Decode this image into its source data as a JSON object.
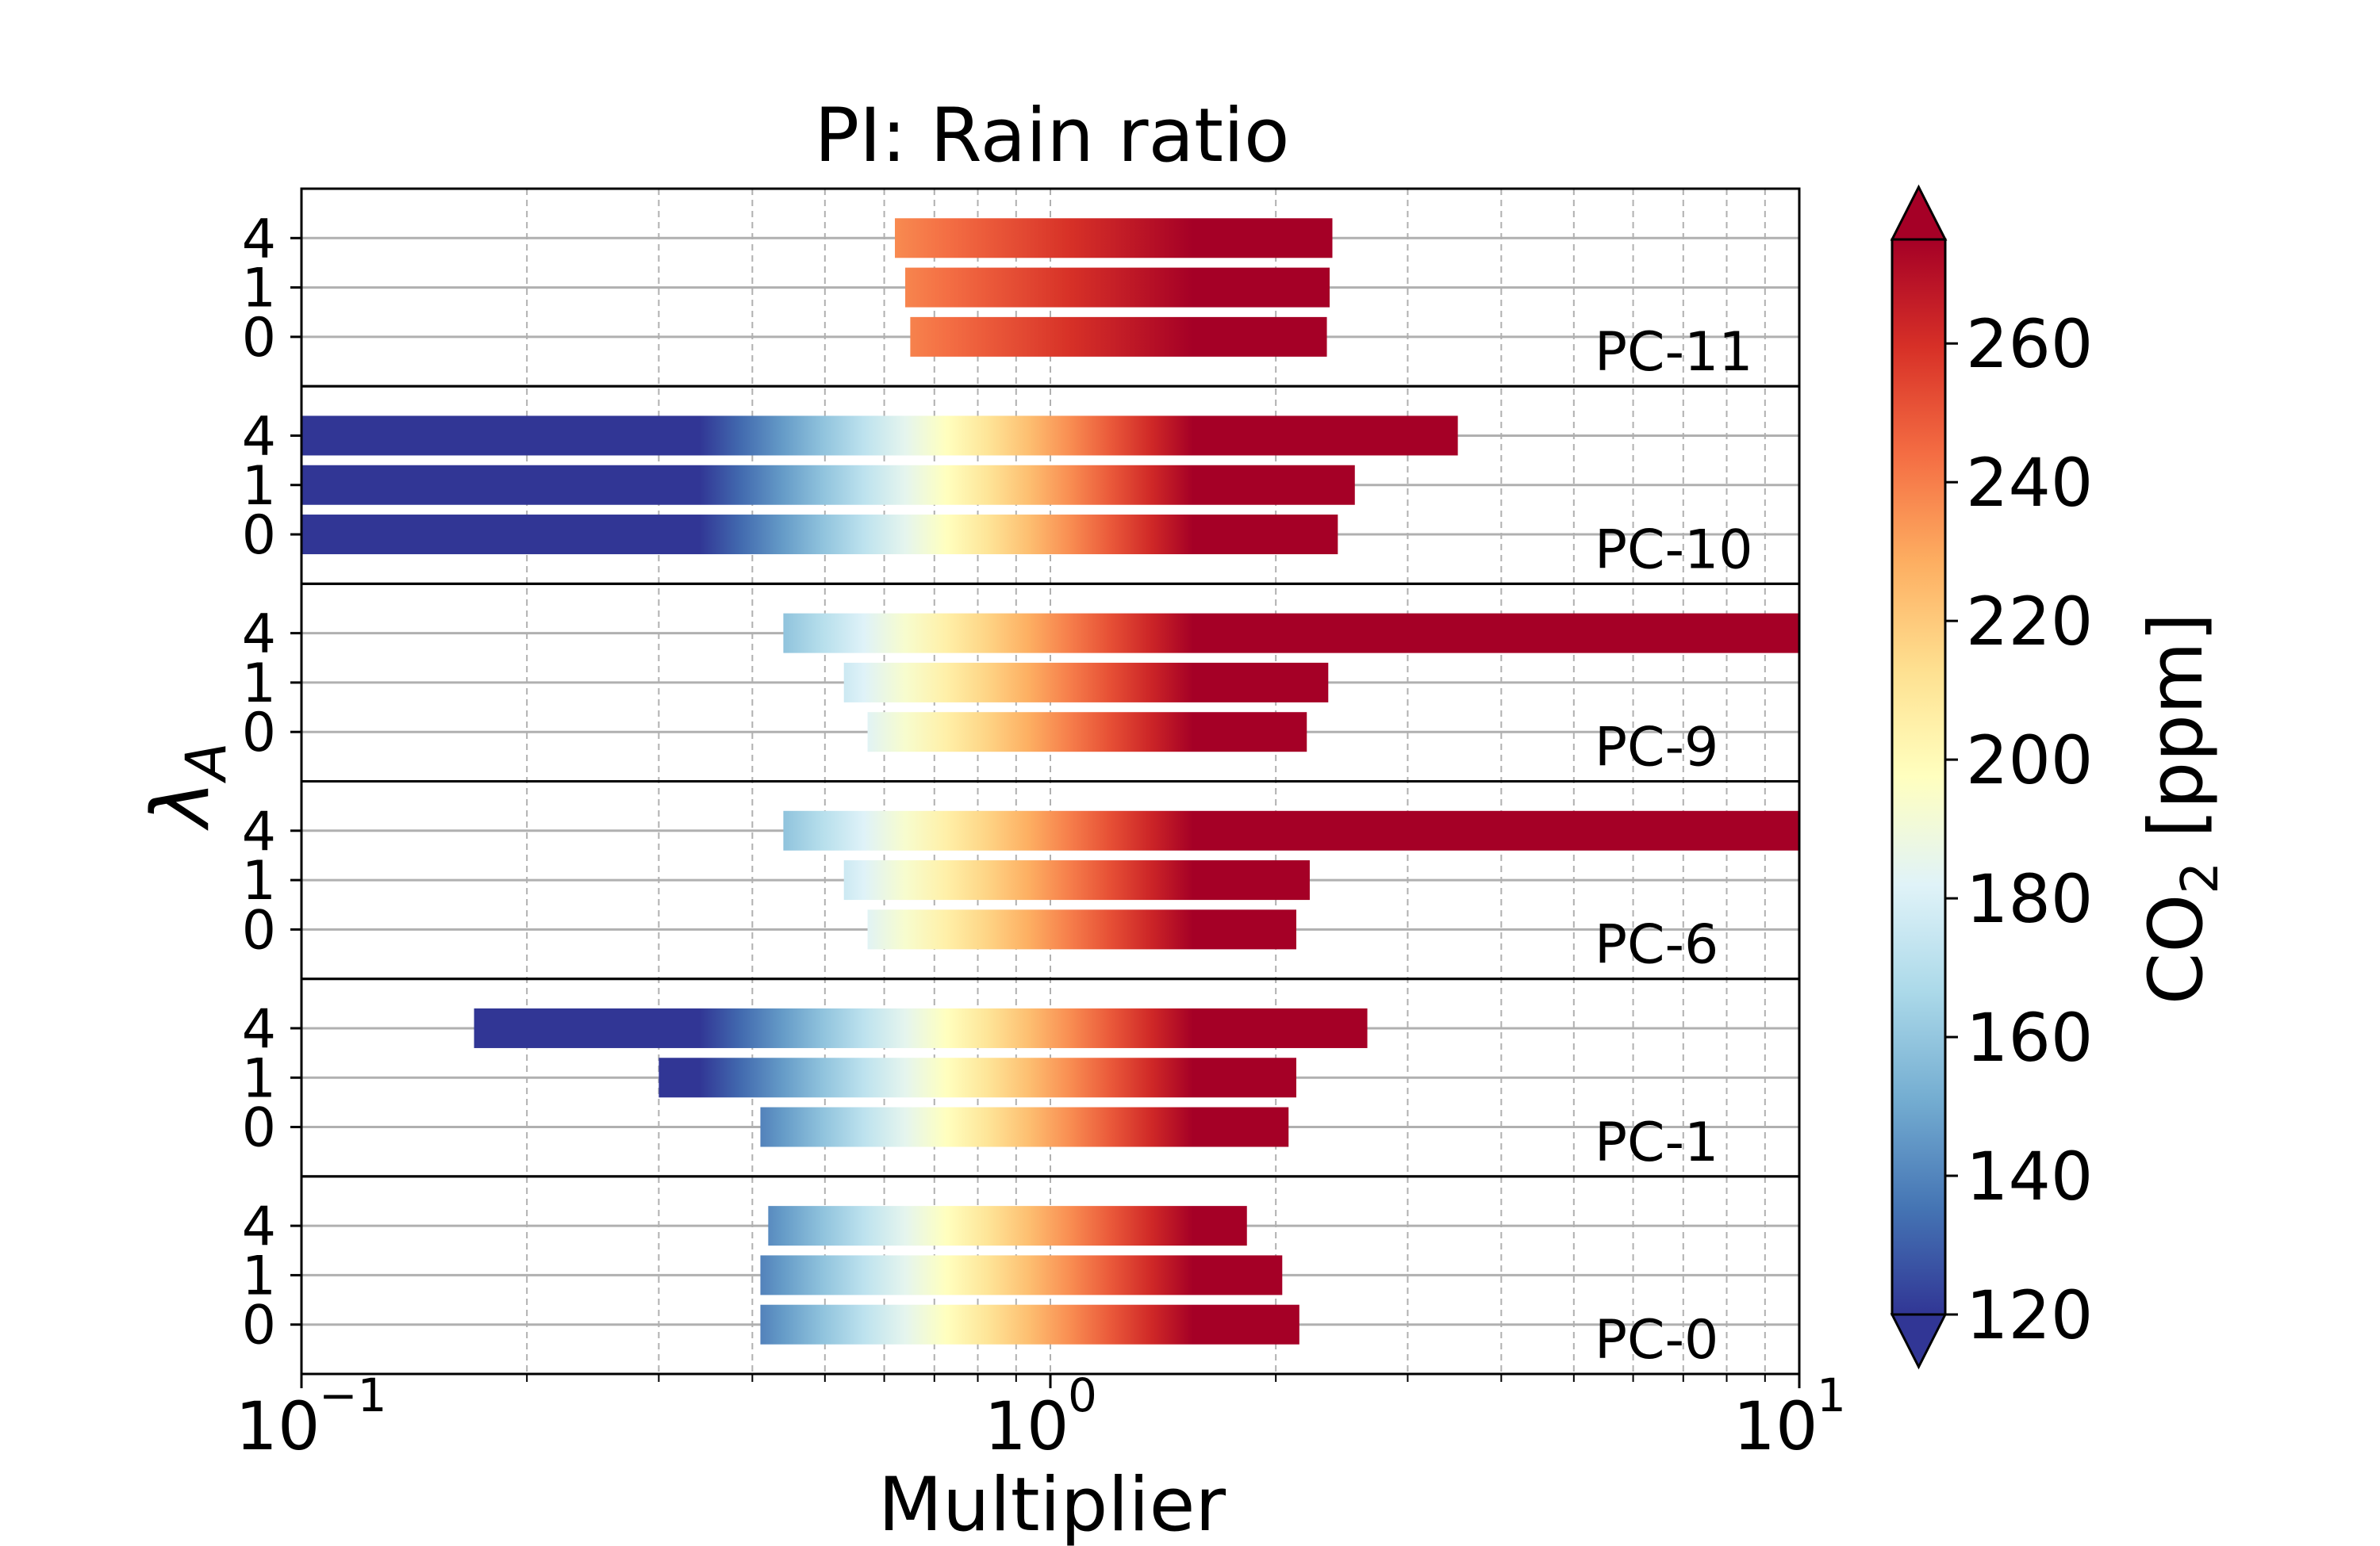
{
  "chart_data": {
    "type": "bar",
    "orientation": "horizontal",
    "title": "PI: Rain ratio",
    "xlabel": "Multiplier",
    "ylabel": "λ",
    "ylabel_subscript": "A",
    "x_scale": "log",
    "xlim": [
      0.1,
      10
    ],
    "x_tick_labels": [
      {
        "base": "10",
        "exp": "−1",
        "value": 0.1
      },
      {
        "base": "10",
        "exp": "0",
        "value": 1
      },
      {
        "base": "10",
        "exp": "1",
        "value": 10
      }
    ],
    "grid": "x major and minor (dashed), y at each bar (solid)",
    "y_tick_labels": [
      "4",
      "1",
      "0"
    ],
    "colorbar": {
      "label_prefix": "CO",
      "label_subscript": "2",
      "label_suffix": " [ppm]",
      "min": 120,
      "max": 275,
      "ticks": [
        "120",
        "140",
        "160",
        "180",
        "200",
        "220",
        "240",
        "260"
      ],
      "extend": "both",
      "colormap": "RdYlBu_r"
    },
    "groups": [
      {
        "name": "PC-11",
        "bars": [
          {
            "lambda": "4",
            "x_start": 0.62,
            "x_end": 2.38,
            "co2_start": 212,
            "co2_end": 275
          },
          {
            "lambda": "1",
            "x_start": 0.64,
            "x_end": 2.36,
            "co2_start": 212,
            "co2_end": 275
          },
          {
            "lambda": "0",
            "x_start": 0.65,
            "x_end": 2.34,
            "co2_start": 212,
            "co2_end": 275
          }
        ]
      },
      {
        "name": "PC-10",
        "bars": [
          {
            "lambda": "4",
            "x_start": 0.1,
            "x_end": 3.5,
            "co2_start": 120,
            "co2_end": 275
          },
          {
            "lambda": "1",
            "x_start": 0.1,
            "x_end": 2.55,
            "co2_start": 120,
            "co2_end": 275
          },
          {
            "lambda": "0",
            "x_start": 0.1,
            "x_end": 2.42,
            "co2_start": 120,
            "co2_end": 275
          }
        ]
      },
      {
        "name": "PC-9",
        "bars": [
          {
            "lambda": "4",
            "x_start": 0.44,
            "x_end": 10,
            "co2_start": 135,
            "co2_end": 275
          },
          {
            "lambda": "1",
            "x_start": 0.53,
            "x_end": 2.35,
            "co2_start": 135,
            "co2_end": 275
          },
          {
            "lambda": "0",
            "x_start": 0.57,
            "x_end": 2.2,
            "co2_start": 135,
            "co2_end": 275
          }
        ]
      },
      {
        "name": "PC-6",
        "bars": [
          {
            "lambda": "4",
            "x_start": 0.44,
            "x_end": 10,
            "co2_start": 135,
            "co2_end": 275
          },
          {
            "lambda": "1",
            "x_start": 0.53,
            "x_end": 2.22,
            "co2_start": 135,
            "co2_end": 275
          },
          {
            "lambda": "0",
            "x_start": 0.57,
            "x_end": 2.13,
            "co2_start": 135,
            "co2_end": 275
          }
        ]
      },
      {
        "name": "PC-1",
        "bars": [
          {
            "lambda": "4",
            "x_start": 0.17,
            "x_end": 2.65,
            "co2_start": 120,
            "co2_end": 275
          },
          {
            "lambda": "1",
            "x_start": 0.3,
            "x_end": 2.13,
            "co2_start": 120,
            "co2_end": 275
          },
          {
            "lambda": "0",
            "x_start": 0.41,
            "x_end": 2.08,
            "co2_start": 120,
            "co2_end": 275
          }
        ]
      },
      {
        "name": "PC-0",
        "bars": [
          {
            "lambda": "4",
            "x_start": 0.42,
            "x_end": 1.83,
            "co2_start": 120,
            "co2_end": 275
          },
          {
            "lambda": "1",
            "x_start": 0.41,
            "x_end": 2.04,
            "co2_start": 120,
            "co2_end": 275
          },
          {
            "lambda": "0",
            "x_start": 0.41,
            "x_end": 2.15,
            "co2_start": 120,
            "co2_end": 275
          }
        ]
      }
    ]
  }
}
